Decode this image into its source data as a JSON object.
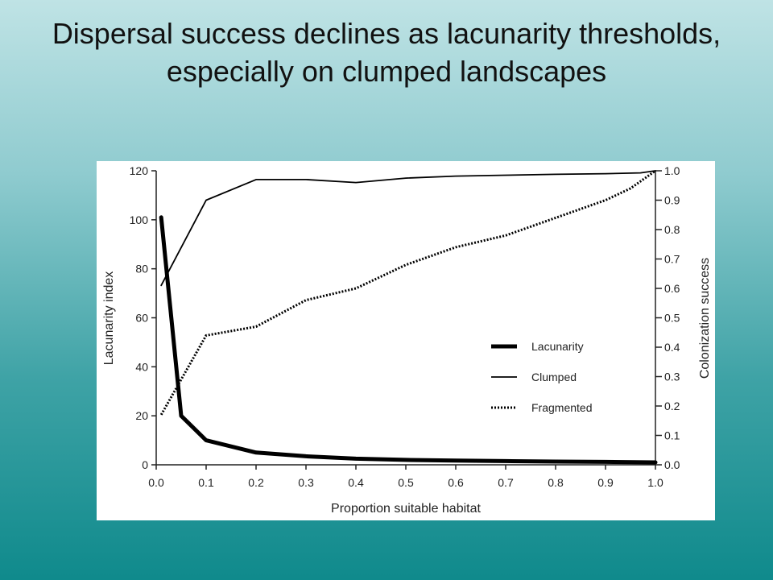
{
  "slide": {
    "title": "Dispersal success declines as lacunarity thresholds, especially on clumped landscapes"
  },
  "chart_data": {
    "type": "line",
    "title": "",
    "xlabel": "Proportion suitable habitat",
    "ylabel_left": "Lacunarity index",
    "ylabel_right": "Colonization success",
    "xlim": [
      0.0,
      1.0
    ],
    "ylim_left": [
      0,
      120
    ],
    "ylim_right": [
      0.0,
      1.0
    ],
    "x_ticks": [
      "0.0",
      "0.1",
      "0.2",
      "0.3",
      "0.4",
      "0.5",
      "0.6",
      "0.7",
      "0.8",
      "0.9",
      "1.0"
    ],
    "y_left_ticks": [
      "0",
      "20",
      "40",
      "60",
      "80",
      "100",
      "120"
    ],
    "y_right_ticks": [
      "0.0",
      "0.1",
      "0.2",
      "0.3",
      "0.4",
      "0.5",
      "0.6",
      "0.7",
      "0.8",
      "0.9",
      "1.0"
    ],
    "legend_position": "lower-right",
    "series": [
      {
        "name": "Lacunarity",
        "axis": "left",
        "style": "thick-solid",
        "color": "#000000",
        "x": [
          0.01,
          0.05,
          0.1,
          0.2,
          0.3,
          0.4,
          0.5,
          0.6,
          0.7,
          0.8,
          0.9,
          1.0
        ],
        "y": [
          101,
          20,
          10,
          5,
          3.5,
          2.5,
          2,
          1.7,
          1.5,
          1.3,
          1.2,
          1.0
        ]
      },
      {
        "name": "Clumped",
        "axis": "right",
        "style": "thin-solid",
        "color": "#000000",
        "x": [
          0.01,
          0.1,
          0.2,
          0.3,
          0.4,
          0.5,
          0.6,
          0.7,
          0.8,
          0.9,
          0.97,
          1.0
        ],
        "y": [
          0.61,
          0.9,
          0.97,
          0.97,
          0.96,
          0.975,
          0.982,
          0.985,
          0.988,
          0.99,
          0.993,
          1.0
        ]
      },
      {
        "name": "Fragmented",
        "axis": "right",
        "style": "dotted",
        "color": "#000000",
        "x": [
          0.01,
          0.1,
          0.2,
          0.3,
          0.4,
          0.5,
          0.6,
          0.7,
          0.8,
          0.9,
          0.95,
          1.0
        ],
        "y": [
          0.17,
          0.44,
          0.47,
          0.56,
          0.6,
          0.68,
          0.74,
          0.78,
          0.84,
          0.9,
          0.94,
          1.0
        ]
      }
    ]
  }
}
